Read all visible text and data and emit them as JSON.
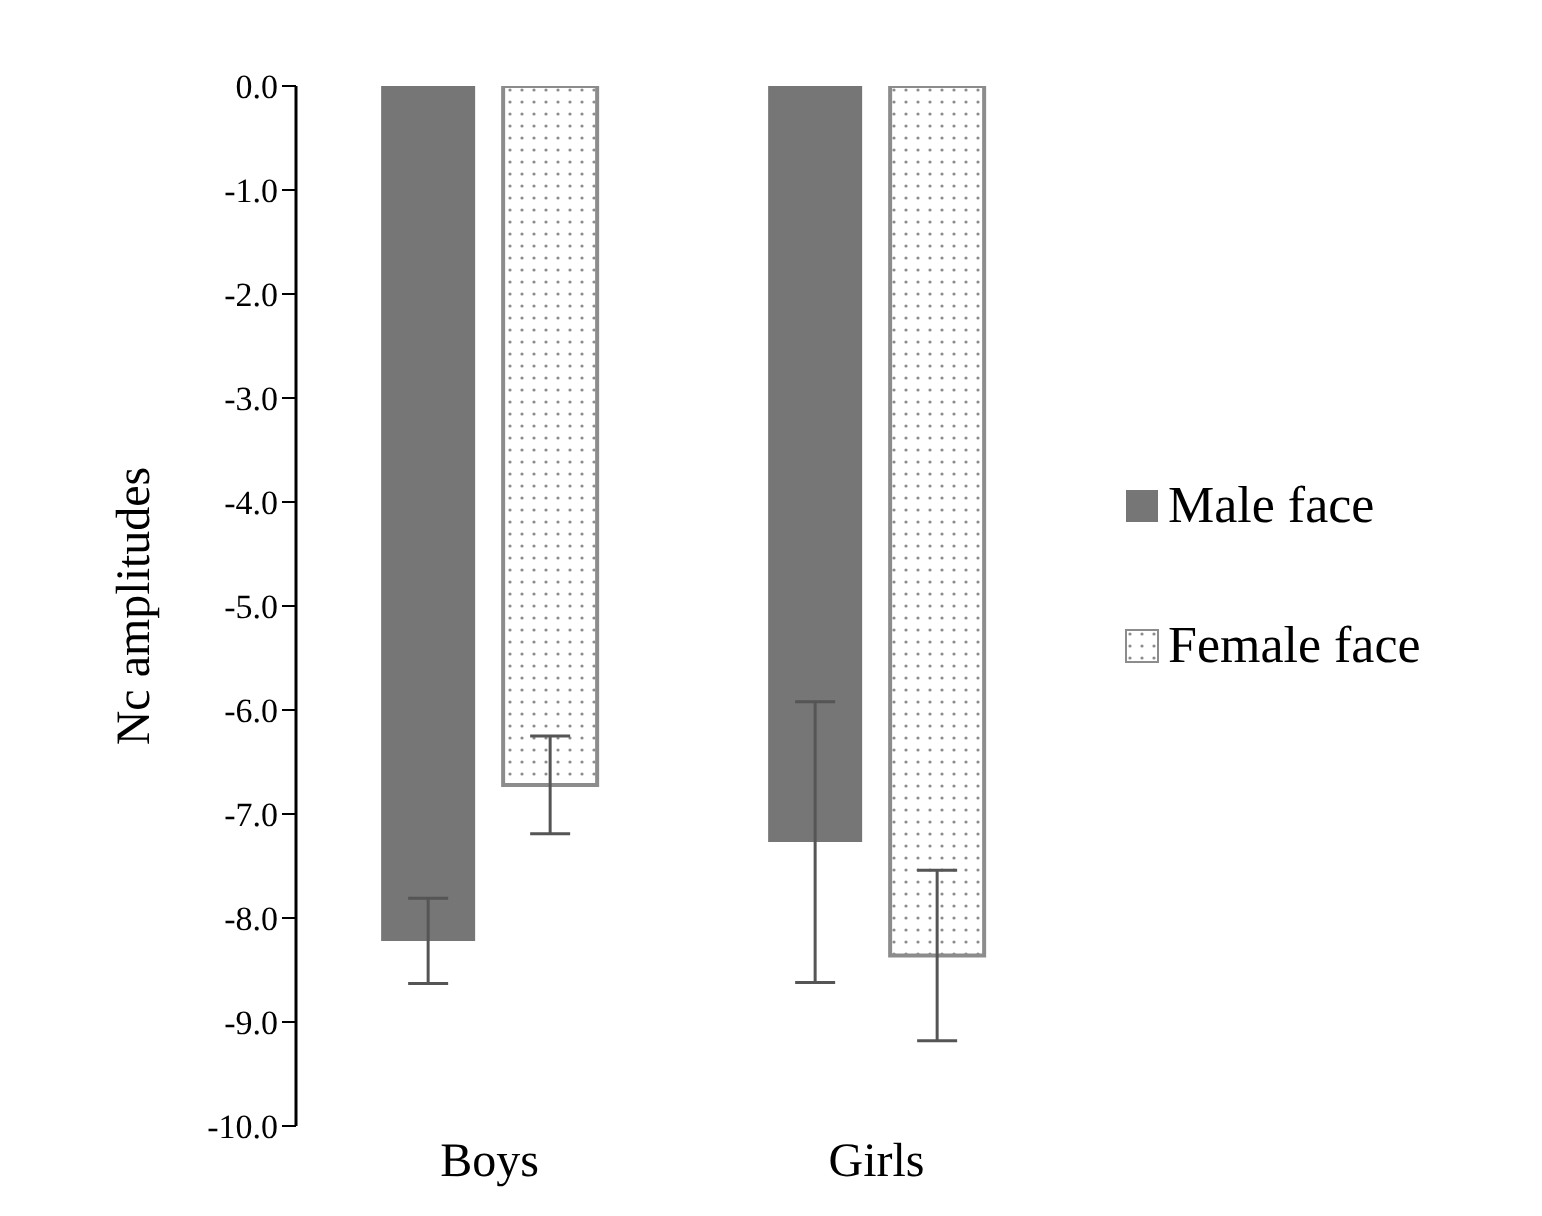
{
  "chart_data": {
    "type": "bar",
    "ylabel": "Nc amplitudes",
    "categories": [
      "Boys",
      "Girls"
    ],
    "series": [
      {
        "name": "Male face",
        "color": "#767676",
        "values": [
          -8.22,
          -7.27
        ],
        "errors": [
          0.41,
          1.35
        ]
      },
      {
        "name": "Female face",
        "color": "#8c8c8c",
        "values": [
          -6.72,
          -8.36
        ],
        "errors": [
          0.47,
          0.82
        ]
      }
    ],
    "ylim": [
      -10,
      0
    ],
    "yticks": [
      {
        "value": 0,
        "label": "0.0"
      },
      {
        "value": -1,
        "label": "-1.0"
      },
      {
        "value": -2,
        "label": "-2.0"
      },
      {
        "value": -3,
        "label": "-3.0"
      },
      {
        "value": -4,
        "label": "-4.0"
      },
      {
        "value": -5,
        "label": "-5.0"
      },
      {
        "value": -6,
        "label": "-6.0"
      },
      {
        "value": -7,
        "label": "-7.0"
      },
      {
        "value": -8,
        "label": "-8.0"
      },
      {
        "value": -9,
        "label": "-9.0"
      },
      {
        "value": -10,
        "label": "-10.0"
      }
    ],
    "legend": "right",
    "grid": false
  }
}
